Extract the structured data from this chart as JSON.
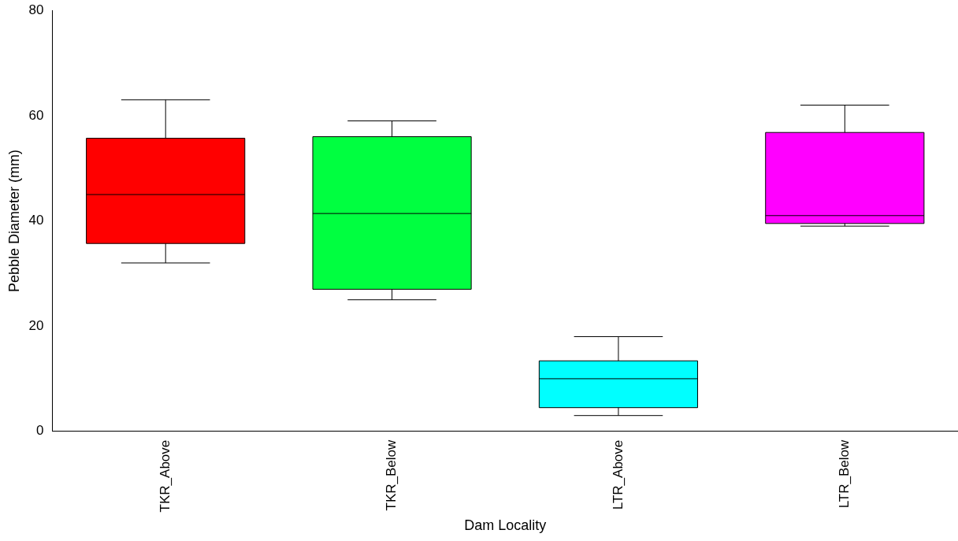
{
  "chart_data": {
    "type": "box",
    "xlabel": "Dam Locality",
    "ylabel": "Pebble Diameter (mm)",
    "categories": [
      "TKR_Above",
      "TKR_Below",
      "LTR_Above",
      "LTR_Below"
    ],
    "colors": [
      "#ff0000",
      "#00ff40",
      "#00ffff",
      "#ff00ff"
    ],
    "boxes": [
      {
        "low": 32,
        "q1": 35.7,
        "median": 45,
        "q3": 55.7,
        "high": 63
      },
      {
        "low": 25,
        "q1": 27,
        "median": 41.4,
        "q3": 56,
        "high": 59
      },
      {
        "low": 3,
        "q1": 4.5,
        "median": 10,
        "q3": 13.4,
        "high": 18
      },
      {
        "low": 39,
        "q1": 39.5,
        "median": 41,
        "q3": 56.8,
        "high": 62
      }
    ],
    "ylim": [
      0,
      80
    ],
    "yticks": [
      0,
      20,
      40,
      60,
      80
    ],
    "grid": false,
    "legend": false
  }
}
